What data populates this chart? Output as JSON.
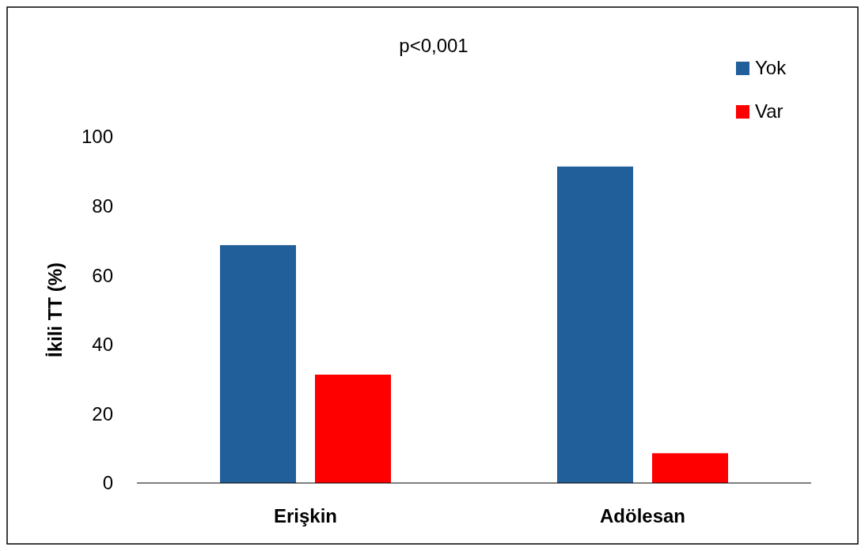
{
  "chart_data": {
    "type": "bar",
    "title": "p<0,001",
    "ylabel": "İkili TT (%)",
    "categories": [
      "Erişkin",
      "Adölesan"
    ],
    "series": [
      {
        "name": "Yok",
        "color": "#215f9a",
        "values": [
          68.7,
          91.4
        ]
      },
      {
        "name": "Var",
        "color": "#ff0000",
        "values": [
          31.3,
          8.6
        ]
      }
    ],
    "ylim": [
      0,
      100
    ],
    "yticks": [
      0,
      20,
      40,
      60,
      80,
      100
    ],
    "grid": false,
    "legend": "top right"
  }
}
